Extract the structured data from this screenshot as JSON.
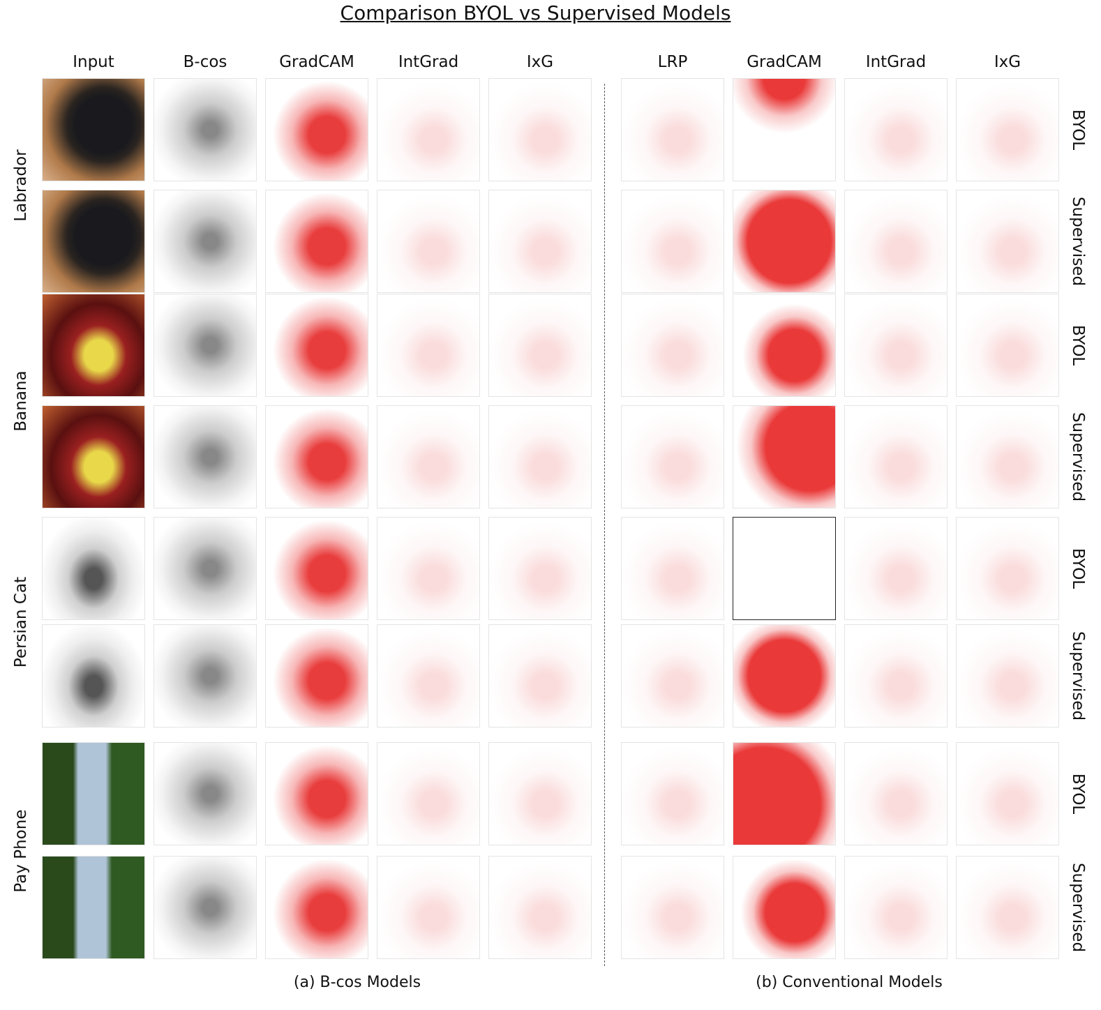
{
  "title": "Comparison BYOL vs Supervised Models",
  "panels": [
    {
      "caption": "(a) B-cos Models",
      "columns": [
        "Input",
        "B-cos",
        "GradCAM",
        "IntGrad",
        "IxG"
      ]
    },
    {
      "caption": "(b) Conventional Models",
      "columns": [
        "LRP",
        "GradCAM",
        "IntGrad",
        "IxG"
      ]
    }
  ],
  "classes": [
    "Labrador",
    "Banana",
    "Persian Cat",
    "Pay Phone"
  ],
  "rows": [
    "BYOL",
    "Supervised",
    "BYOL",
    "Supervised",
    "BYOL",
    "Supervised",
    "BYOL",
    "Supervised"
  ]
}
